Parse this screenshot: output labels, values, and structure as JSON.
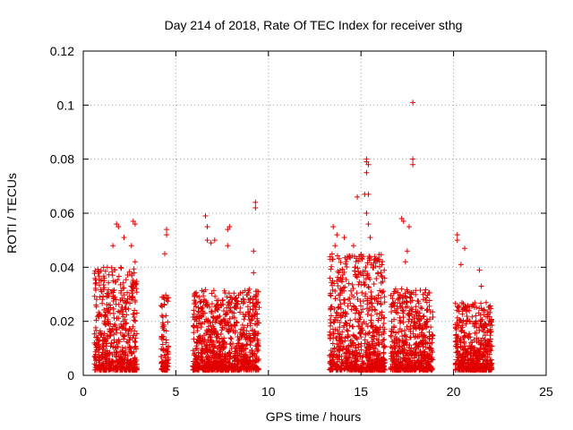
{
  "chart_data": {
    "type": "scatter",
    "title": "Day 214 of 2018, Rate Of TEC Index for receiver sthg",
    "xlabel": "GPS time / hours",
    "ylabel": "ROTI / TECUs",
    "xlim": [
      0,
      25
    ],
    "ylim": [
      0,
      0.12
    ],
    "x_ticks": [
      "0",
      "5",
      "10",
      "15",
      "20",
      "25"
    ],
    "y_ticks": [
      "0",
      "0.02",
      "0.04",
      "0.06",
      "0.08",
      "0.1",
      "0.12"
    ],
    "grid": true,
    "marker": "+",
    "marker_color": "#e00000",
    "clusters": [
      {
        "x_start": 0.6,
        "x_end": 2.9,
        "y_max": 0.04
      },
      {
        "x_start": 4.2,
        "x_end": 4.6,
        "y_max": 0.03
      },
      {
        "x_start": 5.9,
        "x_end": 9.5,
        "y_max": 0.032
      },
      {
        "x_start": 13.3,
        "x_end": 16.3,
        "y_max": 0.045
      },
      {
        "x_start": 16.6,
        "x_end": 18.9,
        "y_max": 0.032
      },
      {
        "x_start": 20.1,
        "x_end": 22.1,
        "y_max": 0.027
      }
    ],
    "series": [
      {
        "name": "ROTI",
        "points": [
          [
            1.3,
            0.04
          ],
          [
            1.6,
            0.048
          ],
          [
            1.8,
            0.056
          ],
          [
            1.9,
            0.055
          ],
          [
            2.2,
            0.051
          ],
          [
            2.7,
            0.057
          ],
          [
            2.8,
            0.056
          ],
          [
            2.6,
            0.048
          ],
          [
            2.8,
            0.042
          ],
          [
            1.1,
            0.04
          ],
          [
            4.5,
            0.054
          ],
          [
            4.5,
            0.052
          ],
          [
            4.4,
            0.045
          ],
          [
            6.6,
            0.059
          ],
          [
            6.7,
            0.055
          ],
          [
            6.7,
            0.05
          ],
          [
            6.9,
            0.049
          ],
          [
            7.1,
            0.05
          ],
          [
            7.8,
            0.054
          ],
          [
            7.9,
            0.055
          ],
          [
            7.8,
            0.048
          ],
          [
            9.3,
            0.064
          ],
          [
            9.3,
            0.062
          ],
          [
            9.2,
            0.046
          ],
          [
            9.2,
            0.038
          ],
          [
            13.5,
            0.055
          ],
          [
            13.7,
            0.052
          ],
          [
            14.1,
            0.051
          ],
          [
            13.6,
            0.048
          ],
          [
            14.8,
            0.066
          ],
          [
            14.6,
            0.048
          ],
          [
            15.2,
            0.067
          ],
          [
            15.3,
            0.08
          ],
          [
            15.3,
            0.079
          ],
          [
            15.4,
            0.078
          ],
          [
            15.3,
            0.075
          ],
          [
            15.4,
            0.067
          ],
          [
            15.3,
            0.06
          ],
          [
            15.4,
            0.056
          ],
          [
            15.5,
            0.051
          ],
          [
            17.2,
            0.058
          ],
          [
            17.3,
            0.057
          ],
          [
            17.6,
            0.055
          ],
          [
            17.5,
            0.046
          ],
          [
            17.8,
            0.101
          ],
          [
            17.8,
            0.08
          ],
          [
            17.8,
            0.078
          ],
          [
            17.4,
            0.042
          ],
          [
            20.2,
            0.052
          ],
          [
            20.2,
            0.05
          ],
          [
            20.6,
            0.047
          ],
          [
            20.4,
            0.041
          ],
          [
            21.4,
            0.039
          ],
          [
            21.5,
            0.033
          ],
          [
            22.0,
            0.016
          ]
        ]
      }
    ]
  }
}
